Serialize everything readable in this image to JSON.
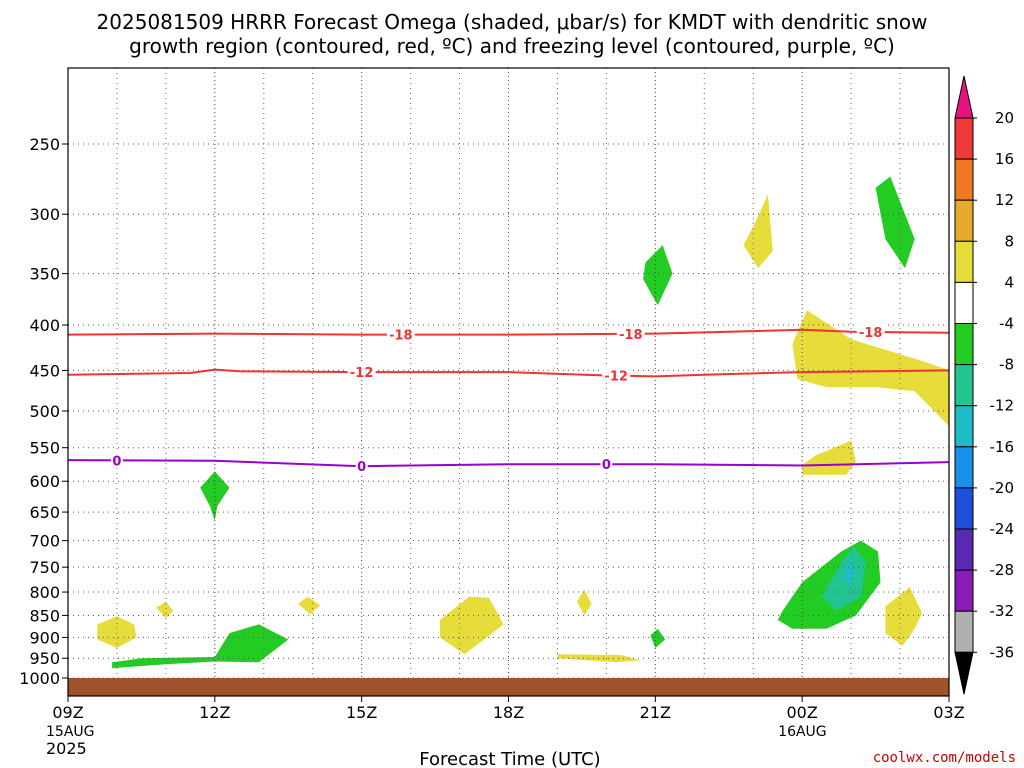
{
  "title": {
    "line1": "2025081509 HRRR Forecast Omega (shaded, μbar/s) for KMDT with dendritic snow",
    "line2": "growth region (contoured, red, ºC) and freezing level (contoured, purple, ºC)"
  },
  "credit": "coolwx.com/models",
  "chart_data": {
    "type": "time-height cross section",
    "title": "2025081509 HRRR Forecast Omega (shaded, μbar/s) for KMDT with dendritic snow growth region (contoured, red, ºC) and freezing level (contoured, purple, ºC)",
    "xlabel": "Forecast Time (UTC)",
    "ylabel": "",
    "x_ticks": [
      {
        "label": "09Z",
        "sub1": "15AUG",
        "sub2": "2025",
        "hour": 0
      },
      {
        "label": "12Z",
        "sub1": "",
        "sub2": "",
        "hour": 3
      },
      {
        "label": "15Z",
        "sub1": "",
        "sub2": "",
        "hour": 6
      },
      {
        "label": "18Z",
        "sub1": "",
        "sub2": "",
        "hour": 9
      },
      {
        "label": "21Z",
        "sub1": "",
        "sub2": "",
        "hour": 12
      },
      {
        "label": "00Z",
        "sub1": "16AUG",
        "sub2": "",
        "hour": 15
      },
      {
        "label": "03Z",
        "sub1": "",
        "sub2": "",
        "hour": 18
      }
    ],
    "xlim": [
      0,
      18
    ],
    "y_ticks": [
      "250",
      "300",
      "350",
      "400",
      "450",
      "500",
      "550",
      "600",
      "650",
      "700",
      "750",
      "800",
      "850",
      "900",
      "950",
      "1000"
    ],
    "y_scale": "pressure (log, inverted)",
    "ylim_hpa": [
      1040,
      200
    ],
    "grid": true,
    "colorbar": {
      "labels": [
        "20",
        "16",
        "12",
        "8",
        "4",
        "-4",
        "-8",
        "-12",
        "-16",
        "-20",
        "-24",
        "-28",
        "-32",
        "-36"
      ],
      "colors": [
        "#e8127e",
        "#f03a3a",
        "#ef7a23",
        "#e8aa2a",
        "#e6dc3a",
        "#ffffff",
        "#22cc22",
        "#22c490",
        "#1cbcc8",
        "#1a90e8",
        "#1e50dc",
        "#5a2ab4",
        "#8b1cb6",
        "#b0b0b0",
        "#000000"
      ]
    },
    "ground_color": "#a0522d",
    "contours": [
      {
        "kind": "dendritic",
        "color": "#ee3333",
        "label": "-18",
        "labels_at": [
          6.8,
          11.5,
          16.4
        ],
        "points": [
          [
            0,
            410
          ],
          [
            3,
            409
          ],
          [
            6,
            410
          ],
          [
            9,
            410
          ],
          [
            12,
            409
          ],
          [
            15,
            405
          ],
          [
            16,
            407
          ],
          [
            18,
            408
          ]
        ]
      },
      {
        "kind": "dendritic",
        "color": "#ee3333",
        "label": "-12",
        "labels_at": [
          6.0,
          11.2
        ],
        "points": [
          [
            0,
            455
          ],
          [
            2.5,
            453
          ],
          [
            3,
            449
          ],
          [
            3.5,
            451
          ],
          [
            6,
            452
          ],
          [
            9,
            452
          ],
          [
            11,
            456
          ],
          [
            12,
            457
          ],
          [
            13,
            455
          ],
          [
            15,
            452
          ],
          [
            18,
            450
          ]
        ]
      },
      {
        "kind": "freezing",
        "color": "#9900cc",
        "label": "0",
        "labels_at": [
          1.0,
          6.0,
          11.0
        ],
        "points": [
          [
            0,
            568
          ],
          [
            3,
            569
          ],
          [
            6,
            577
          ],
          [
            9,
            574
          ],
          [
            12,
            574
          ],
          [
            15,
            576
          ],
          [
            18,
            571
          ]
        ]
      }
    ],
    "omega_regions": [
      {
        "value": 4,
        "points": [
          [
            0.6,
            870
          ],
          [
            1.0,
            852
          ],
          [
            1.35,
            870
          ],
          [
            1.4,
            900
          ],
          [
            1.0,
            925
          ],
          [
            0.6,
            905
          ]
        ]
      },
      {
        "value": 4,
        "points": [
          [
            1.8,
            833
          ],
          [
            2.0,
            820
          ],
          [
            2.15,
            840
          ],
          [
            2.0,
            856
          ]
        ]
      },
      {
        "value": 4,
        "points": [
          [
            4.7,
            825
          ],
          [
            4.9,
            810
          ],
          [
            5.15,
            828
          ],
          [
            4.95,
            848
          ]
        ]
      },
      {
        "value": 4,
        "points": [
          [
            7.6,
            860
          ],
          [
            8.2,
            810
          ],
          [
            8.6,
            812
          ],
          [
            8.9,
            870
          ],
          [
            8.5,
            905
          ],
          [
            8.1,
            940
          ],
          [
            7.6,
            900
          ]
        ]
      },
      {
        "value": 4,
        "points": [
          [
            10.4,
            820
          ],
          [
            10.55,
            795
          ],
          [
            10.7,
            825
          ],
          [
            10.55,
            850
          ]
        ]
      },
      {
        "value": 4,
        "points": [
          [
            10.0,
            940
          ],
          [
            11.3,
            942
          ],
          [
            11.7,
            955
          ],
          [
            11.2,
            960
          ],
          [
            10.0,
            950
          ]
        ]
      },
      {
        "value": 4,
        "points": [
          [
            14.0,
            310
          ],
          [
            14.3,
            285
          ],
          [
            14.4,
            330
          ],
          [
            14.1,
            345
          ],
          [
            13.8,
            325
          ]
        ]
      },
      {
        "value": 4,
        "points": [
          [
            14.8,
            420
          ],
          [
            15.1,
            385
          ],
          [
            16.0,
            415
          ],
          [
            17.5,
            440
          ],
          [
            18.0,
            450
          ],
          [
            18.0,
            520
          ],
          [
            17.3,
            475
          ],
          [
            16.5,
            470
          ],
          [
            15.5,
            470
          ],
          [
            14.9,
            460
          ]
        ]
      },
      {
        "value": 4,
        "points": [
          [
            15.0,
            575
          ],
          [
            15.3,
            560
          ],
          [
            16.0,
            540
          ],
          [
            16.1,
            570
          ],
          [
            15.9,
            590
          ],
          [
            15.0,
            590
          ]
        ]
      },
      {
        "value": 4,
        "points": [
          [
            16.7,
            830
          ],
          [
            17.2,
            790
          ],
          [
            17.45,
            845
          ],
          [
            17.3,
            880
          ],
          [
            17.05,
            920
          ],
          [
            16.7,
            890
          ]
        ]
      },
      {
        "value": -4,
        "points": [
          [
            11.8,
            340
          ],
          [
            12.15,
            325
          ],
          [
            12.35,
            350
          ],
          [
            12.05,
            380
          ],
          [
            11.75,
            355
          ]
        ]
      },
      {
        "value": -4,
        "points": [
          [
            16.5,
            280
          ],
          [
            16.8,
            272
          ],
          [
            17.3,
            320
          ],
          [
            17.1,
            345
          ],
          [
            16.7,
            320
          ]
        ]
      },
      {
        "value": -4,
        "points": [
          [
            2.7,
            610
          ],
          [
            3.0,
            585
          ],
          [
            3.3,
            610
          ],
          [
            3.05,
            640
          ],
          [
            3.0,
            665
          ],
          [
            2.9,
            640
          ]
        ]
      },
      {
        "value": -4,
        "points": [
          [
            0.9,
            960
          ],
          [
            1.5,
            950
          ],
          [
            3.0,
            947
          ],
          [
            3.3,
            890
          ],
          [
            3.9,
            870
          ],
          [
            4.5,
            905
          ],
          [
            3.9,
            960
          ],
          [
            3.0,
            958
          ],
          [
            2.0,
            965
          ],
          [
            0.9,
            975
          ]
        ]
      },
      {
        "value": -4,
        "points": [
          [
            11.9,
            895
          ],
          [
            12.05,
            880
          ],
          [
            12.2,
            905
          ],
          [
            12.0,
            925
          ]
        ]
      },
      {
        "value": -4,
        "points": [
          [
            14.6,
            840
          ],
          [
            15.0,
            780
          ],
          [
            15.8,
            720
          ],
          [
            16.2,
            700
          ],
          [
            16.55,
            720
          ],
          [
            16.6,
            780
          ],
          [
            16.1,
            850
          ],
          [
            15.5,
            880
          ],
          [
            14.8,
            880
          ],
          [
            14.5,
            860
          ]
        ]
      },
      {
        "value": -8,
        "points": [
          [
            15.4,
            810
          ],
          [
            15.8,
            740
          ],
          [
            16.05,
            710
          ],
          [
            16.3,
            740
          ],
          [
            16.2,
            810
          ],
          [
            15.7,
            840
          ]
        ]
      },
      {
        "value": -12,
        "points": [
          [
            15.85,
            770
          ],
          [
            15.95,
            735
          ],
          [
            16.1,
            760
          ],
          [
            15.95,
            790
          ]
        ]
      }
    ]
  }
}
